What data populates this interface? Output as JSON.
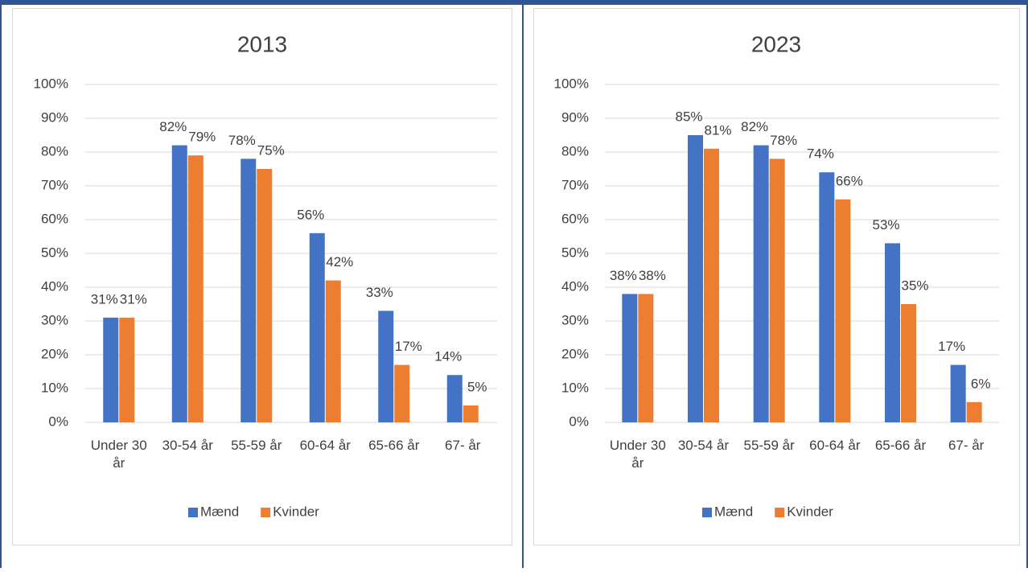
{
  "chart_data": [
    {
      "type": "bar",
      "title": "2013",
      "categories": [
        "Under 30 år",
        "30-54 år",
        "55-59 år",
        "60-64 år",
        "65-66 år",
        "67- år"
      ],
      "series": [
        {
          "name": "Mænd",
          "color": "#4472c4",
          "values": [
            31,
            82,
            78,
            56,
            33,
            14
          ],
          "value_labels": [
            "31%",
            "82%",
            "78%",
            "56%",
            "33%",
            "14%"
          ]
        },
        {
          "name": "Kvinder",
          "color": "#ed7d31",
          "values": [
            31,
            79,
            75,
            42,
            17,
            5
          ],
          "value_labels": [
            "31%",
            "79%",
            "75%",
            "42%",
            "17%",
            "5%"
          ]
        }
      ],
      "ylim": [
        0,
        100
      ],
      "yticks": [
        {
          "value": 0,
          "label": "0%"
        },
        {
          "value": 10,
          "label": "10%"
        },
        {
          "value": 20,
          "label": "20%"
        },
        {
          "value": 30,
          "label": "30%"
        },
        {
          "value": 40,
          "label": "40%"
        },
        {
          "value": 50,
          "label": "50%"
        },
        {
          "value": 60,
          "label": "60%"
        },
        {
          "value": 70,
          "label": "70%"
        },
        {
          "value": 80,
          "label": "80%"
        },
        {
          "value": 90,
          "label": "90%"
        },
        {
          "value": 100,
          "label": "100%"
        }
      ],
      "grid": true,
      "legend": "bottom"
    },
    {
      "type": "bar",
      "title": "2023",
      "categories": [
        "Under 30 år",
        "30-54 år",
        "55-59 år",
        "60-64 år",
        "65-66 år",
        "67- år"
      ],
      "series": [
        {
          "name": "Mænd",
          "color": "#4472c4",
          "values": [
            38,
            85,
            82,
            74,
            53,
            17
          ],
          "value_labels": [
            "38%",
            "85%",
            "82%",
            "74%",
            "53%",
            "17%"
          ]
        },
        {
          "name": "Kvinder",
          "color": "#ed7d31",
          "values": [
            38,
            81,
            78,
            66,
            35,
            6
          ],
          "value_labels": [
            "38%",
            "81%",
            "78%",
            "66%",
            "35%",
            "6%"
          ]
        }
      ],
      "ylim": [
        0,
        100
      ],
      "yticks": [
        {
          "value": 0,
          "label": "0%"
        },
        {
          "value": 10,
          "label": "10%"
        },
        {
          "value": 20,
          "label": "20%"
        },
        {
          "value": 30,
          "label": "30%"
        },
        {
          "value": 40,
          "label": "40%"
        },
        {
          "value": 50,
          "label": "50%"
        },
        {
          "value": 60,
          "label": "60%"
        },
        {
          "value": 70,
          "label": "70%"
        },
        {
          "value": 80,
          "label": "80%"
        },
        {
          "value": 90,
          "label": "90%"
        },
        {
          "value": 100,
          "label": "100%"
        }
      ],
      "grid": true,
      "legend": "bottom"
    }
  ]
}
